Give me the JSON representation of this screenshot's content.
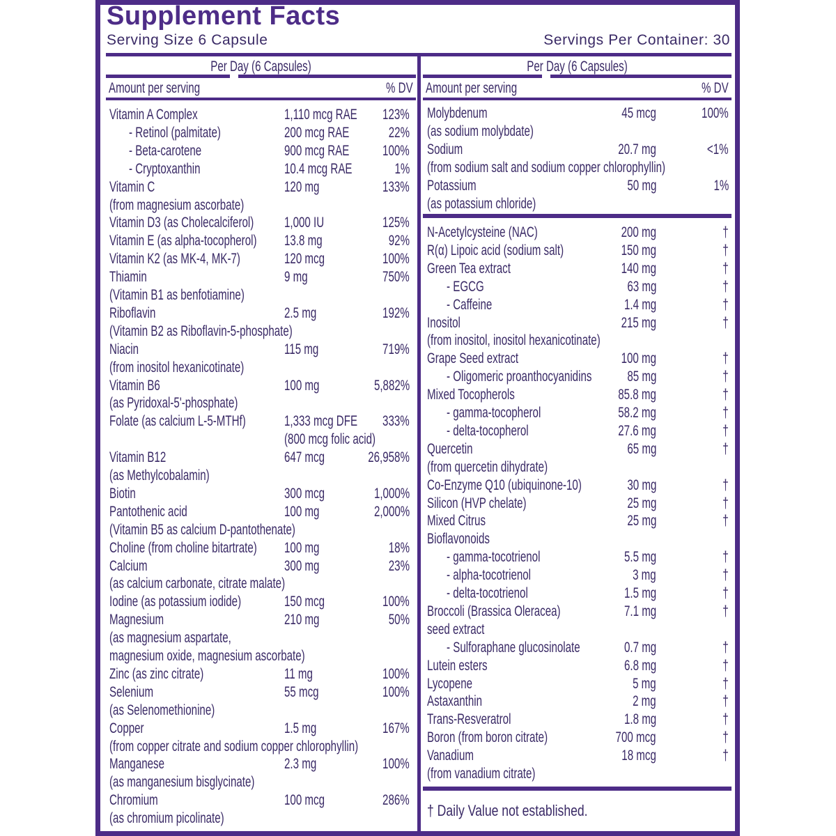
{
  "title": "Supplement Facts",
  "serving_size": "Serving Size 6 Capsule",
  "servings_per_container": "Servings Per Container: 30",
  "left": {
    "column_header": "Per Day (6 Capsules)",
    "amount_label": "Amount per serving",
    "dv_label": "% DV",
    "rows": [
      {
        "name": "Vitamin A Complex",
        "amount": "1,110 mcg RAE",
        "dv": "123%"
      },
      {
        "name": "- Retinol (palmitate)",
        "amount": "200 mcg RAE",
        "dv": "22%"
      },
      {
        "name": "- Beta-carotene",
        "amount": "900 mcg RAE",
        "dv": "100%"
      },
      {
        "name": "- Cryptoxanthin",
        "amount": "10.4 mcg RAE",
        "dv": "1%"
      },
      {
        "name": "Vitamin C",
        "amount": "120 mg",
        "dv": "133%"
      },
      {
        "name": "(from magnesium ascorbate)"
      },
      {
        "name": "Vitamin D3 (as Cholecalciferol)",
        "amount": "1,000 IU",
        "dv": "125%"
      },
      {
        "name": "Vitamin E (as alpha-tocopherol)",
        "amount": "13.8 mg",
        "dv": "92%"
      },
      {
        "name": "Vitamin K2 (as MK-4, MK-7)",
        "amount": "120 mcg",
        "dv": "100%"
      },
      {
        "name": "Thiamin",
        "amount": "9 mg",
        "dv": "750%"
      },
      {
        "name": "(Vitamin B1 as benfotiamine)"
      },
      {
        "name": "Riboflavin",
        "amount": "2.5 mg",
        "dv": "192%"
      },
      {
        "name": "(Vitamin B2 as Riboflavin-5-phosphate)"
      },
      {
        "name": "Niacin",
        "amount": "115 mg",
        "dv": "719%"
      },
      {
        "name": "(from inositol hexanicotinate)"
      },
      {
        "name": "Vitamin B6",
        "amount": "100 mg",
        "dv": "5,882%"
      },
      {
        "name": "(as Pyridoxal-5'-phosphate)"
      },
      {
        "name": "Folate (as calcium L-5-MTHf)",
        "amount": "1,333 mcg DFE",
        "dv": "333%"
      },
      {
        "amount": "(800 mcg folic acid)"
      },
      {
        "name": "Vitamin B12",
        "amount": "647 mcg",
        "dv": "26,958%"
      },
      {
        "name": "(as Methylcobalamin)"
      },
      {
        "name": "Biotin",
        "amount": "300 mcg",
        "dv": "1,000%"
      },
      {
        "name": "Pantothenic acid",
        "amount": "100 mg",
        "dv": "2,000%"
      },
      {
        "name": "(Vitamin B5 as calcium D-pantothenate)"
      },
      {
        "name": "Choline (from choline bitartrate)",
        "amount": "100 mg",
        "dv": "18%"
      },
      {
        "name": "Calcium",
        "amount": "300 mg",
        "dv": "23%"
      },
      {
        "name": "(as calcium carbonate, citrate malate)"
      },
      {
        "name": "Iodine (as potassium iodide)",
        "amount": "150 mcg",
        "dv": "100%"
      },
      {
        "name": "Magnesium",
        "amount": "210 mg",
        "dv": "50%"
      },
      {
        "name": "(as magnesium aspartate,"
      },
      {
        "name": "magnesium oxide, magnesium ascorbate)"
      },
      {
        "name": "Zinc (as zinc citrate)",
        "amount": "11 mg",
        "dv": "100%"
      },
      {
        "name": "Selenium",
        "amount": "55 mcg",
        "dv": "100%"
      },
      {
        "name": "(as Selenomethionine)"
      },
      {
        "name": "Copper",
        "amount": "1.5 mg",
        "dv": "167%"
      },
      {
        "name": "(from copper citrate and sodium copper chlorophyllin)"
      },
      {
        "name": "Manganese",
        "amount": "2.3 mg",
        "dv": "100%"
      },
      {
        "name": "(as manganesium bisglycinate)"
      },
      {
        "name": "Chromium",
        "amount": "100 mcg",
        "dv": "286%"
      },
      {
        "name": "(as chromium picolinate)"
      }
    ]
  },
  "right": {
    "column_header": "Per Day (6 Capsules)",
    "amount_label": "Amount per serving",
    "dv_label": "% DV",
    "sections": [
      [
        {
          "name": "Molybdenum",
          "amount": "45 mcg",
          "dv": "100%"
        },
        {
          "name": "(as sodium molybdate)"
        },
        {
          "name": "Sodium",
          "amount": "20.7 mg",
          "dv": "<1%"
        },
        {
          "name": "(from sodium salt and sodium copper chlorophyllin)"
        },
        {
          "name": "Potassium",
          "amount": "50 mg",
          "dv": "1%"
        },
        {
          "name": "(as potassium chloride)"
        }
      ],
      [
        {
          "name": "N-Acetylcysteine (NAC)",
          "amount": "200 mg",
          "dv": "†"
        },
        {
          "name": "R(α) Lipoic acid (sodium salt)",
          "amount": "150 mg",
          "dv": "†"
        },
        {
          "name": "Green Tea extract",
          "amount": "140 mg",
          "dv": "†"
        },
        {
          "name": "- EGCG",
          "amount": "63 mg",
          "dv": "†"
        },
        {
          "name": "- Caffeine",
          "amount": "1.4 mg",
          "dv": "†"
        },
        {
          "name": "Inositol",
          "amount": "215 mg",
          "dv": "†"
        },
        {
          "name": "(from inositol, inositol hexanicotinate)"
        },
        {
          "name": "Grape Seed extract",
          "amount": "100 mg",
          "dv": "†"
        },
        {
          "name": "- Oligomeric proanthocyanidins",
          "amount": "85 mg",
          "dv": "†"
        },
        {
          "name": "Mixed Tocopherols",
          "amount": "85.8 mg",
          "dv": "†"
        },
        {
          "name": "- gamma-tocopherol",
          "amount": "58.2 mg",
          "dv": "†"
        },
        {
          "name": "- delta-tocopherol",
          "amount": "27.6 mg",
          "dv": "†"
        },
        {
          "name": "Quercetin",
          "amount": "65 mg",
          "dv": "†"
        },
        {
          "name": "(from quercetin dihydrate)"
        },
        {
          "name": "Co-Enzyme Q10 (ubiquinone-10)",
          "amount": "30 mg",
          "dv": "†"
        },
        {
          "name": "Silicon (HVP chelate)",
          "amount": "25 mg",
          "dv": "†"
        },
        {
          "name": "Mixed Citrus",
          "amount": "25 mg",
          "dv": "†"
        },
        {
          "name": "Bioflavonoids"
        },
        {
          "name": "- gamma-tocotrienol",
          "amount": "5.5 mg",
          "dv": "†"
        },
        {
          "name": "- alpha-tocotrienol",
          "amount": "3 mg",
          "dv": "†"
        },
        {
          "name": "- delta-tocotrienol",
          "amount": "1.5 mg",
          "dv": "†"
        },
        {
          "name": "Broccoli (Brassica Oleracea)",
          "amount": "7.1 mg",
          "dv": "†"
        },
        {
          "name": "seed extract"
        },
        {
          "name": "- Sulforaphane glucosinolate",
          "amount": "0.7 mg",
          "dv": "†"
        },
        {
          "name": "Lutein esters",
          "amount": "6.8 mg",
          "dv": "†"
        },
        {
          "name": "Lycopene",
          "amount": "5 mg",
          "dv": "†"
        },
        {
          "name": "Astaxanthin",
          "amount": "2 mg",
          "dv": "†"
        },
        {
          "name": "Trans-Resveratrol",
          "amount": "1.8 mg",
          "dv": "†"
        },
        {
          "name": "Boron (from boron citrate)",
          "amount": "700 mcg",
          "dv": "†"
        },
        {
          "name": "Vanadium",
          "amount": "18 mcg",
          "dv": "†"
        },
        {
          "name": "(from vanadium citrate)"
        }
      ]
    ]
  },
  "footnote": "† Daily Value not established."
}
